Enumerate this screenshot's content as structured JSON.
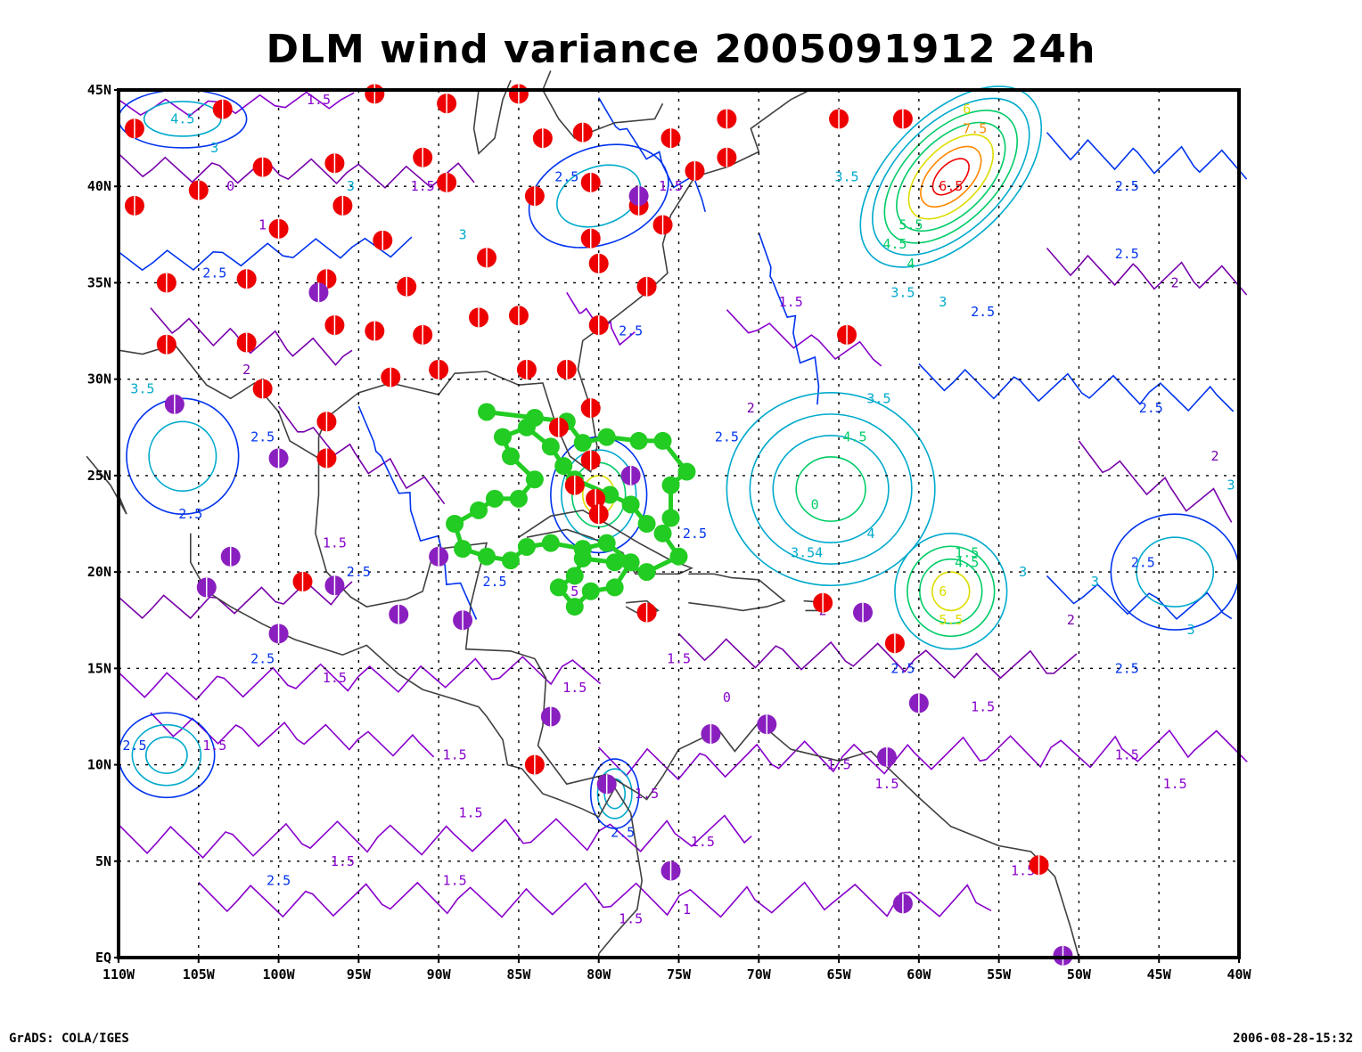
{
  "title": "DLM wind variance 2005091912 24h",
  "footer": {
    "left": "GrADS: COLA/IGES",
    "right": "2006-08-28-15:32"
  },
  "map": {
    "lon_range": [
      -110,
      -40
    ],
    "lat_range": [
      0,
      45
    ],
    "x_ticks": [
      {
        "v": -110,
        "label": "110W"
      },
      {
        "v": -105,
        "label": "105W"
      },
      {
        "v": -100,
        "label": "100W"
      },
      {
        "v": -95,
        "label": "95W"
      },
      {
        "v": -90,
        "label": "90W"
      },
      {
        "v": -85,
        "label": "85W"
      },
      {
        "v": -80,
        "label": "80W"
      },
      {
        "v": -75,
        "label": "75W"
      },
      {
        "v": -70,
        "label": "70W"
      },
      {
        "v": -65,
        "label": "65W"
      },
      {
        "v": -60,
        "label": "60W"
      },
      {
        "v": -55,
        "label": "55W"
      },
      {
        "v": -50,
        "label": "50W"
      },
      {
        "v": -45,
        "label": "45W"
      },
      {
        "v": -40,
        "label": "40W"
      }
    ],
    "y_ticks": [
      {
        "v": 0,
        "label": "EQ"
      },
      {
        "v": 5,
        "label": "5N"
      },
      {
        "v": 10,
        "label": "10N"
      },
      {
        "v": 15,
        "label": "15N"
      },
      {
        "v": 20,
        "label": "20N"
      },
      {
        "v": 25,
        "label": "25N"
      },
      {
        "v": 30,
        "label": "30N"
      },
      {
        "v": 35,
        "label": "35N"
      },
      {
        "v": 40,
        "label": "40N"
      },
      {
        "v": 45,
        "label": "45N"
      }
    ],
    "colors": {
      "contour_1_5": "#8800cc",
      "contour_2": "#7700aa",
      "contour_2_5": "#0033ee",
      "contour_3": "#00aacc",
      "contour_4": "#00cc66",
      "contour_6": "#dddd00",
      "contour_7": "#ff8800",
      "contour_8": "#ee0000",
      "coast": "#404040",
      "red_dot": "#ee0000",
      "purple_dot": "#8a1fc0",
      "track": "#22cc22"
    },
    "contour_labels": [
      {
        "lon": -106,
        "lat": 43.5,
        "text": "4.5",
        "c": "#00aacc"
      },
      {
        "lon": -104,
        "lat": 42,
        "text": "3",
        "c": "#00aacc"
      },
      {
        "lon": -97.5,
        "lat": 44.5,
        "text": "1.5",
        "c": "#8800cc"
      },
      {
        "lon": -103,
        "lat": 40,
        "text": "0",
        "c": "#8800cc"
      },
      {
        "lon": -95.5,
        "lat": 40,
        "text": "3",
        "c": "#00aacc"
      },
      {
        "lon": -100.5,
        "lat": 38,
        "text": "1.5",
        "c": "#8800cc"
      },
      {
        "lon": -104,
        "lat": 35.5,
        "text": "2.5",
        "c": "#0033ee"
      },
      {
        "lon": -102,
        "lat": 30.5,
        "text": "2",
        "c": "#7700aa"
      },
      {
        "lon": -108.5,
        "lat": 29.5,
        "text": "3.5",
        "c": "#00aacc"
      },
      {
        "lon": -101,
        "lat": 27,
        "text": "2.5",
        "c": "#0033ee"
      },
      {
        "lon": -105.5,
        "lat": 23,
        "text": "2.5",
        "c": "#0033ee"
      },
      {
        "lon": -96.5,
        "lat": 21.5,
        "text": "1.5",
        "c": "#8800cc"
      },
      {
        "lon": -95,
        "lat": 20,
        "text": "2.5",
        "c": "#0033ee"
      },
      {
        "lon": -101,
        "lat": 15.5,
        "text": "2.5",
        "c": "#0033ee"
      },
      {
        "lon": -96.5,
        "lat": 14.5,
        "text": "1.5",
        "c": "#8800cc"
      },
      {
        "lon": -109,
        "lat": 11,
        "text": "2.5",
        "c": "#0033ee"
      },
      {
        "lon": -104,
        "lat": 11,
        "text": "1.5",
        "c": "#8800cc"
      },
      {
        "lon": -96,
        "lat": 5,
        "text": "1.5",
        "c": "#8800cc"
      },
      {
        "lon": -100,
        "lat": 4,
        "text": "2.5",
        "c": "#0033ee"
      },
      {
        "lon": -91,
        "lat": 40,
        "text": "1.5",
        "c": "#8800cc"
      },
      {
        "lon": -82,
        "lat": 40.5,
        "text": "2.5",
        "c": "#0033ee"
      },
      {
        "lon": -88.5,
        "lat": 37.5,
        "text": "3",
        "c": "#00aacc"
      },
      {
        "lon": -75.5,
        "lat": 40,
        "text": "1.5",
        "c": "#8800cc"
      },
      {
        "lon": -78,
        "lat": 32.5,
        "text": "2.5",
        "c": "#0033ee"
      },
      {
        "lon": -68,
        "lat": 34,
        "text": "1.5",
        "c": "#8800cc"
      },
      {
        "lon": -70.5,
        "lat": 28.5,
        "text": "2",
        "c": "#7700aa"
      },
      {
        "lon": -72,
        "lat": 27,
        "text": "2.5",
        "c": "#0033ee"
      },
      {
        "lon": -74,
        "lat": 22,
        "text": "2.5",
        "c": "#0033ee"
      },
      {
        "lon": -86.5,
        "lat": 19.5,
        "text": "2.5",
        "c": "#0033ee"
      },
      {
        "lon": -82,
        "lat": 19,
        "text": "1.5",
        "c": "#8800cc"
      },
      {
        "lon": -75,
        "lat": 15.5,
        "text": "1.5",
        "c": "#8800cc"
      },
      {
        "lon": -72,
        "lat": 13.5,
        "text": "0",
        "c": "#8800cc"
      },
      {
        "lon": -81.5,
        "lat": 14,
        "text": "1.5",
        "c": "#8800cc"
      },
      {
        "lon": -89,
        "lat": 10.5,
        "text": "1.5",
        "c": "#8800cc"
      },
      {
        "lon": -88,
        "lat": 7.5,
        "text": "1.5",
        "c": "#8800cc"
      },
      {
        "lon": -77,
        "lat": 8.5,
        "text": "1.5",
        "c": "#8800cc"
      },
      {
        "lon": -73.5,
        "lat": 6,
        "text": "1.5",
        "c": "#8800cc"
      },
      {
        "lon": -78.5,
        "lat": 6.5,
        "text": "2.5",
        "c": "#0033ee"
      },
      {
        "lon": -89,
        "lat": 4,
        "text": "1.5",
        "c": "#8800cc"
      },
      {
        "lon": -78,
        "lat": 2,
        "text": "1.5",
        "c": "#8800cc"
      },
      {
        "lon": -74.5,
        "lat": 2.5,
        "text": "1",
        "c": "#8800cc"
      },
      {
        "lon": -65,
        "lat": 10,
        "text": "1.5",
        "c": "#8800cc"
      },
      {
        "lon": -62,
        "lat": 9,
        "text": "1.5",
        "c": "#8800cc"
      },
      {
        "lon": -66,
        "lat": 18,
        "text": "2",
        "c": "#7700aa"
      },
      {
        "lon": -61,
        "lat": 15,
        "text": "2.5",
        "c": "#0033ee"
      },
      {
        "lon": -56,
        "lat": 13,
        "text": "1.5",
        "c": "#8800cc"
      },
      {
        "lon": -53.5,
        "lat": 4.5,
        "text": "1.5",
        "c": "#8800cc"
      },
      {
        "lon": -47,
        "lat": 10.5,
        "text": "1.5",
        "c": "#8800cc"
      },
      {
        "lon": -44,
        "lat": 9,
        "text": "1.5",
        "c": "#8800cc"
      },
      {
        "lon": -47,
        "lat": 15,
        "text": "2.5",
        "c": "#0033ee"
      },
      {
        "lon": -46,
        "lat": 20.5,
        "text": "2.5",
        "c": "#0033ee"
      },
      {
        "lon": -43,
        "lat": 17,
        "text": "3",
        "c": "#00aacc"
      },
      {
        "lon": -50.5,
        "lat": 17.5,
        "text": "2",
        "c": "#7700aa"
      },
      {
        "lon": -49,
        "lat": 19.5,
        "text": "3",
        "c": "#00aacc"
      },
      {
        "lon": -45.5,
        "lat": 28.5,
        "text": "2.5",
        "c": "#0033ee"
      },
      {
        "lon": -41.5,
        "lat": 26,
        "text": "2",
        "c": "#7700aa"
      },
      {
        "lon": -40.5,
        "lat": 24.5,
        "text": "3",
        "c": "#00aacc"
      },
      {
        "lon": -44,
        "lat": 35,
        "text": "2",
        "c": "#7700aa"
      },
      {
        "lon": -47,
        "lat": 36.5,
        "text": "2.5",
        "c": "#0033ee"
      },
      {
        "lon": -47,
        "lat": 40,
        "text": "2.5",
        "c": "#0033ee"
      },
      {
        "lon": -56,
        "lat": 33.5,
        "text": "2.5",
        "c": "#0033ee"
      },
      {
        "lon": -58.5,
        "lat": 34,
        "text": "3",
        "c": "#00aacc"
      },
      {
        "lon": -61,
        "lat": 34.5,
        "text": "3.5",
        "c": "#00aacc"
      },
      {
        "lon": -60.5,
        "lat": 36,
        "text": "4",
        "c": "#00cc66"
      },
      {
        "lon": -61.5,
        "lat": 37,
        "text": "4.5",
        "c": "#00cc66"
      },
      {
        "lon": -60.5,
        "lat": 38,
        "text": "5.5",
        "c": "#00cc66"
      },
      {
        "lon": -58,
        "lat": 40,
        "text": "6.5",
        "c": "#ee0000"
      },
      {
        "lon": -56.5,
        "lat": 43,
        "text": "7.5",
        "c": "#ff8800"
      },
      {
        "lon": -57,
        "lat": 44,
        "text": "6",
        "c": "#dddd00"
      },
      {
        "lon": -64.5,
        "lat": 40.5,
        "text": "3.5",
        "c": "#00aacc"
      },
      {
        "lon": -62.5,
        "lat": 29,
        "text": "3.5",
        "c": "#00aacc"
      },
      {
        "lon": -64,
        "lat": 27,
        "text": "4.5",
        "c": "#00cc66"
      },
      {
        "lon": -66.5,
        "lat": 23.5,
        "text": "0",
        "c": "#00cc66"
      },
      {
        "lon": -67,
        "lat": 21,
        "text": "3.54",
        "c": "#00aacc"
      },
      {
        "lon": -63,
        "lat": 22,
        "text": "4",
        "c": "#00aacc"
      },
      {
        "lon": -57,
        "lat": 21,
        "text": "1.5",
        "c": "#00cc66"
      },
      {
        "lon": -57,
        "lat": 20.5,
        "text": "4.5",
        "c": "#00cc66"
      },
      {
        "lon": -58.5,
        "lat": 19,
        "text": "6",
        "c": "#dddd00"
      },
      {
        "lon": -58,
        "lat": 17.5,
        "text": "5.5",
        "c": "#dddd00"
      },
      {
        "lon": -53.5,
        "lat": 20,
        "text": "3",
        "c": "#00aacc"
      }
    ],
    "stations_red": [
      [
        -109,
        43
      ],
      [
        -103.5,
        44
      ],
      [
        -94,
        44.8
      ],
      [
        -89.5,
        44.3
      ],
      [
        -85,
        44.8
      ],
      [
        -83.5,
        42.5
      ],
      [
        -81,
        42.8
      ],
      [
        -75.5,
        42.5
      ],
      [
        -72,
        43.5
      ],
      [
        -65,
        43.5
      ],
      [
        -61,
        43.5
      ],
      [
        -72,
        41.5
      ],
      [
        -74,
        40.8
      ],
      [
        -101,
        41
      ],
      [
        -96.5,
        41.2
      ],
      [
        -91,
        41.5
      ],
      [
        -89.5,
        40.2
      ],
      [
        -105,
        39.8
      ],
      [
        -109,
        39
      ],
      [
        -96,
        39
      ],
      [
        -84,
        39.5
      ],
      [
        -80.5,
        40.2
      ],
      [
        -77.5,
        39
      ],
      [
        -76,
        38
      ],
      [
        -100,
        37.8
      ],
      [
        -93.5,
        37.2
      ],
      [
        -80.5,
        37.3
      ],
      [
        -87,
        36.3
      ],
      [
        -80,
        36
      ],
      [
        -107,
        35
      ],
      [
        -102,
        35.2
      ],
      [
        -97,
        35.2
      ],
      [
        -92,
        34.8
      ],
      [
        -77,
        34.8
      ],
      [
        -87.5,
        33.2
      ],
      [
        -85,
        33.3
      ],
      [
        -80,
        32.8
      ],
      [
        -96.5,
        32.8
      ],
      [
        -94,
        32.5
      ],
      [
        -91,
        32.3
      ],
      [
        -107,
        31.8
      ],
      [
        -102,
        31.9
      ],
      [
        -64.5,
        32.3
      ],
      [
        -84.5,
        30.5
      ],
      [
        -82,
        30.5
      ],
      [
        -90,
        30.5
      ],
      [
        -93,
        30.1
      ],
      [
        -101,
        29.5
      ],
      [
        -80.5,
        28.5
      ],
      [
        -97,
        27.8
      ],
      [
        -82.5,
        27.5
      ],
      [
        -97,
        25.9
      ],
      [
        -80.5,
        25.8
      ],
      [
        -81.5,
        24.5
      ],
      [
        -80.2,
        23.8
      ],
      [
        -80,
        23
      ],
      [
        -98.5,
        19.5
      ],
      [
        -77,
        17.9
      ],
      [
        -66,
        18.4
      ],
      [
        -61.5,
        16.3
      ],
      [
        -84,
        10
      ],
      [
        -52.5,
        4.8
      ]
    ],
    "stations_purple": [
      [
        -77.5,
        39.5
      ],
      [
        -97.5,
        34.5
      ],
      [
        -106.5,
        28.7
      ],
      [
        -100,
        25.9
      ],
      [
        -78,
        25
      ],
      [
        -103,
        20.8
      ],
      [
        -104.5,
        19.2
      ],
      [
        -90,
        20.8
      ],
      [
        -96.5,
        19.3
      ],
      [
        -92.5,
        17.8
      ],
      [
        -88.5,
        17.5
      ],
      [
        -100,
        16.8
      ],
      [
        -63.5,
        17.9
      ],
      [
        -60,
        13.2
      ],
      [
        -83,
        12.5
      ],
      [
        -73,
        11.6
      ],
      [
        -69.5,
        12.1
      ],
      [
        -62,
        10.4
      ],
      [
        -79.5,
        9
      ],
      [
        -75.5,
        4.5
      ],
      [
        -61,
        2.8
      ],
      [
        -51,
        0.1
      ]
    ],
    "track": [
      [
        -87,
        28.3
      ],
      [
        -84,
        28
      ],
      [
        -82,
        27.8
      ],
      [
        -81,
        26.7
      ],
      [
        -79.5,
        27
      ],
      [
        -77.5,
        26.8
      ],
      [
        -76,
        26.8
      ],
      [
        -74.5,
        25.2
      ],
      [
        -75.5,
        24.5
      ],
      [
        -75.5,
        22.8
      ],
      [
        -76,
        22
      ],
      [
        -75,
        20.8
      ],
      [
        -77,
        20
      ],
      [
        -79,
        20.5
      ],
      [
        -81,
        20.7
      ],
      [
        -81.5,
        19.8
      ],
      [
        -82.5,
        19.2
      ],
      [
        -81.5,
        18.2
      ],
      [
        -80.5,
        19
      ],
      [
        -79,
        19.2
      ],
      [
        -78,
        20.5
      ],
      [
        -79.5,
        21.5
      ],
      [
        -81,
        21.2
      ],
      [
        -83,
        21.5
      ],
      [
        -84.5,
        21.3
      ],
      [
        -85.5,
        20.6
      ],
      [
        -87,
        20.8
      ],
      [
        -88.5,
        21.2
      ],
      [
        -89,
        22.5
      ],
      [
        -87.5,
        23.2
      ],
      [
        -86.5,
        23.8
      ],
      [
        -85,
        23.8
      ],
      [
        -84,
        24.8
      ],
      [
        -85.5,
        26
      ],
      [
        -86,
        27
      ],
      [
        -84.5,
        27.5
      ],
      [
        -83,
        26.5
      ],
      [
        -82.2,
        25.5
      ],
      [
        -81.5,
        24.8
      ],
      [
        -79.3,
        24
      ],
      [
        -78,
        23.5
      ],
      [
        -77,
        22.5
      ]
    ]
  }
}
